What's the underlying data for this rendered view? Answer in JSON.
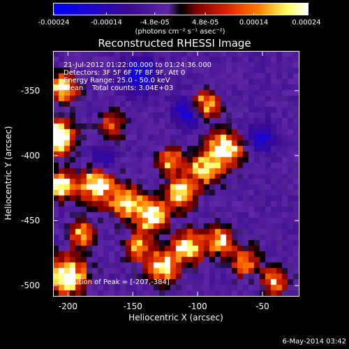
{
  "chart_data": {
    "type": "heatmap",
    "title": "Reconstructed RHESSI Image",
    "xlabel": "Heliocentric X (arcsec)",
    "ylabel": "Heliocentric Y (arcsec)",
    "xlim": [
      -211,
      -22
    ],
    "ylim": [
      -508,
      -320
    ],
    "x_ticks": [
      "-200",
      "-150",
      "-100",
      "-50"
    ],
    "x_tick_values": [
      -200,
      -150,
      -100,
      -50
    ],
    "y_ticks": [
      "-350",
      "-400",
      "-450",
      "-500"
    ],
    "y_tick_values": [
      -350,
      -400,
      -450,
      -500
    ],
    "colorbar": {
      "ticks": [
        "-0.00024",
        "-0.00014",
        "-4.8e-05",
        "4.8e-05",
        "0.00014",
        "0.00024"
      ],
      "tick_values": [
        -0.00024,
        -0.00014,
        -4.8e-05,
        4.8e-05,
        0.00014,
        0.00024
      ],
      "units": "(photons cm⁻² s⁻¹ asec⁻²)",
      "colors": [
        "#0000ff",
        "#3b0a8e",
        "#5d28a6",
        "#000000",
        "#7a0000",
        "#d62400",
        "#ff7800",
        "#ffff66",
        "#ffffff"
      ]
    },
    "annotations": {
      "time_range": "21-Jul-2012 01:22:00.000 to 01:24:36.000",
      "detectors": "Detectors: 3F 5F 6F 7F 8F 9F, Att 0",
      "energy": "Energy Range: 25.0 - 50.0 keV",
      "clean": "Clean",
      "counts": "Total counts: 3.04E+03",
      "peak": "Position of Peak = [-207,-384]"
    },
    "peak": [
      -207,
      -384
    ]
  },
  "footer": "6-May-2014 03:42"
}
